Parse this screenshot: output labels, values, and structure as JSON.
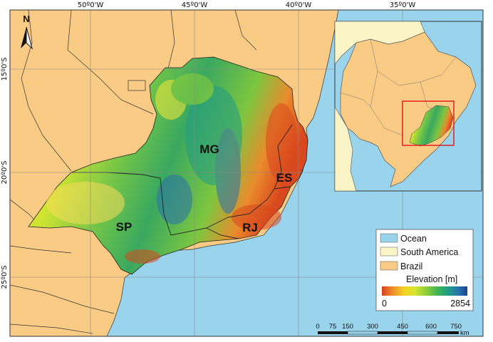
{
  "map": {
    "lon_labels": [
      "50º0'W",
      "45º0'W",
      "40º0'W",
      "35º0'W"
    ],
    "lat_labels": [
      "15º0'S",
      "20º0'S",
      "25º0'S"
    ],
    "north_label": "N",
    "states": [
      "MG",
      "ES",
      "SP",
      "RJ"
    ]
  },
  "legend": {
    "items": [
      {
        "label": "Ocean",
        "color": "#9ad3ec"
      },
      {
        "label": "South America",
        "color": "#fbf4c6"
      },
      {
        "label": "Brazil",
        "color": "#f9cb85"
      }
    ],
    "elevation_title": "Elevation [m]",
    "elev_min": "0",
    "elev_max": "2854",
    "ramp_colors": [
      "#d8401f",
      "#ec8a2a",
      "#f6d324",
      "#d7e630",
      "#8ccf3a",
      "#3db356",
      "#1f9b86",
      "#2a70ad",
      "#1c3f8e"
    ]
  },
  "scalebar": {
    "ticks": [
      "0",
      "75",
      "150",
      "300",
      "450",
      "600",
      "750"
    ],
    "unit": "km"
  }
}
